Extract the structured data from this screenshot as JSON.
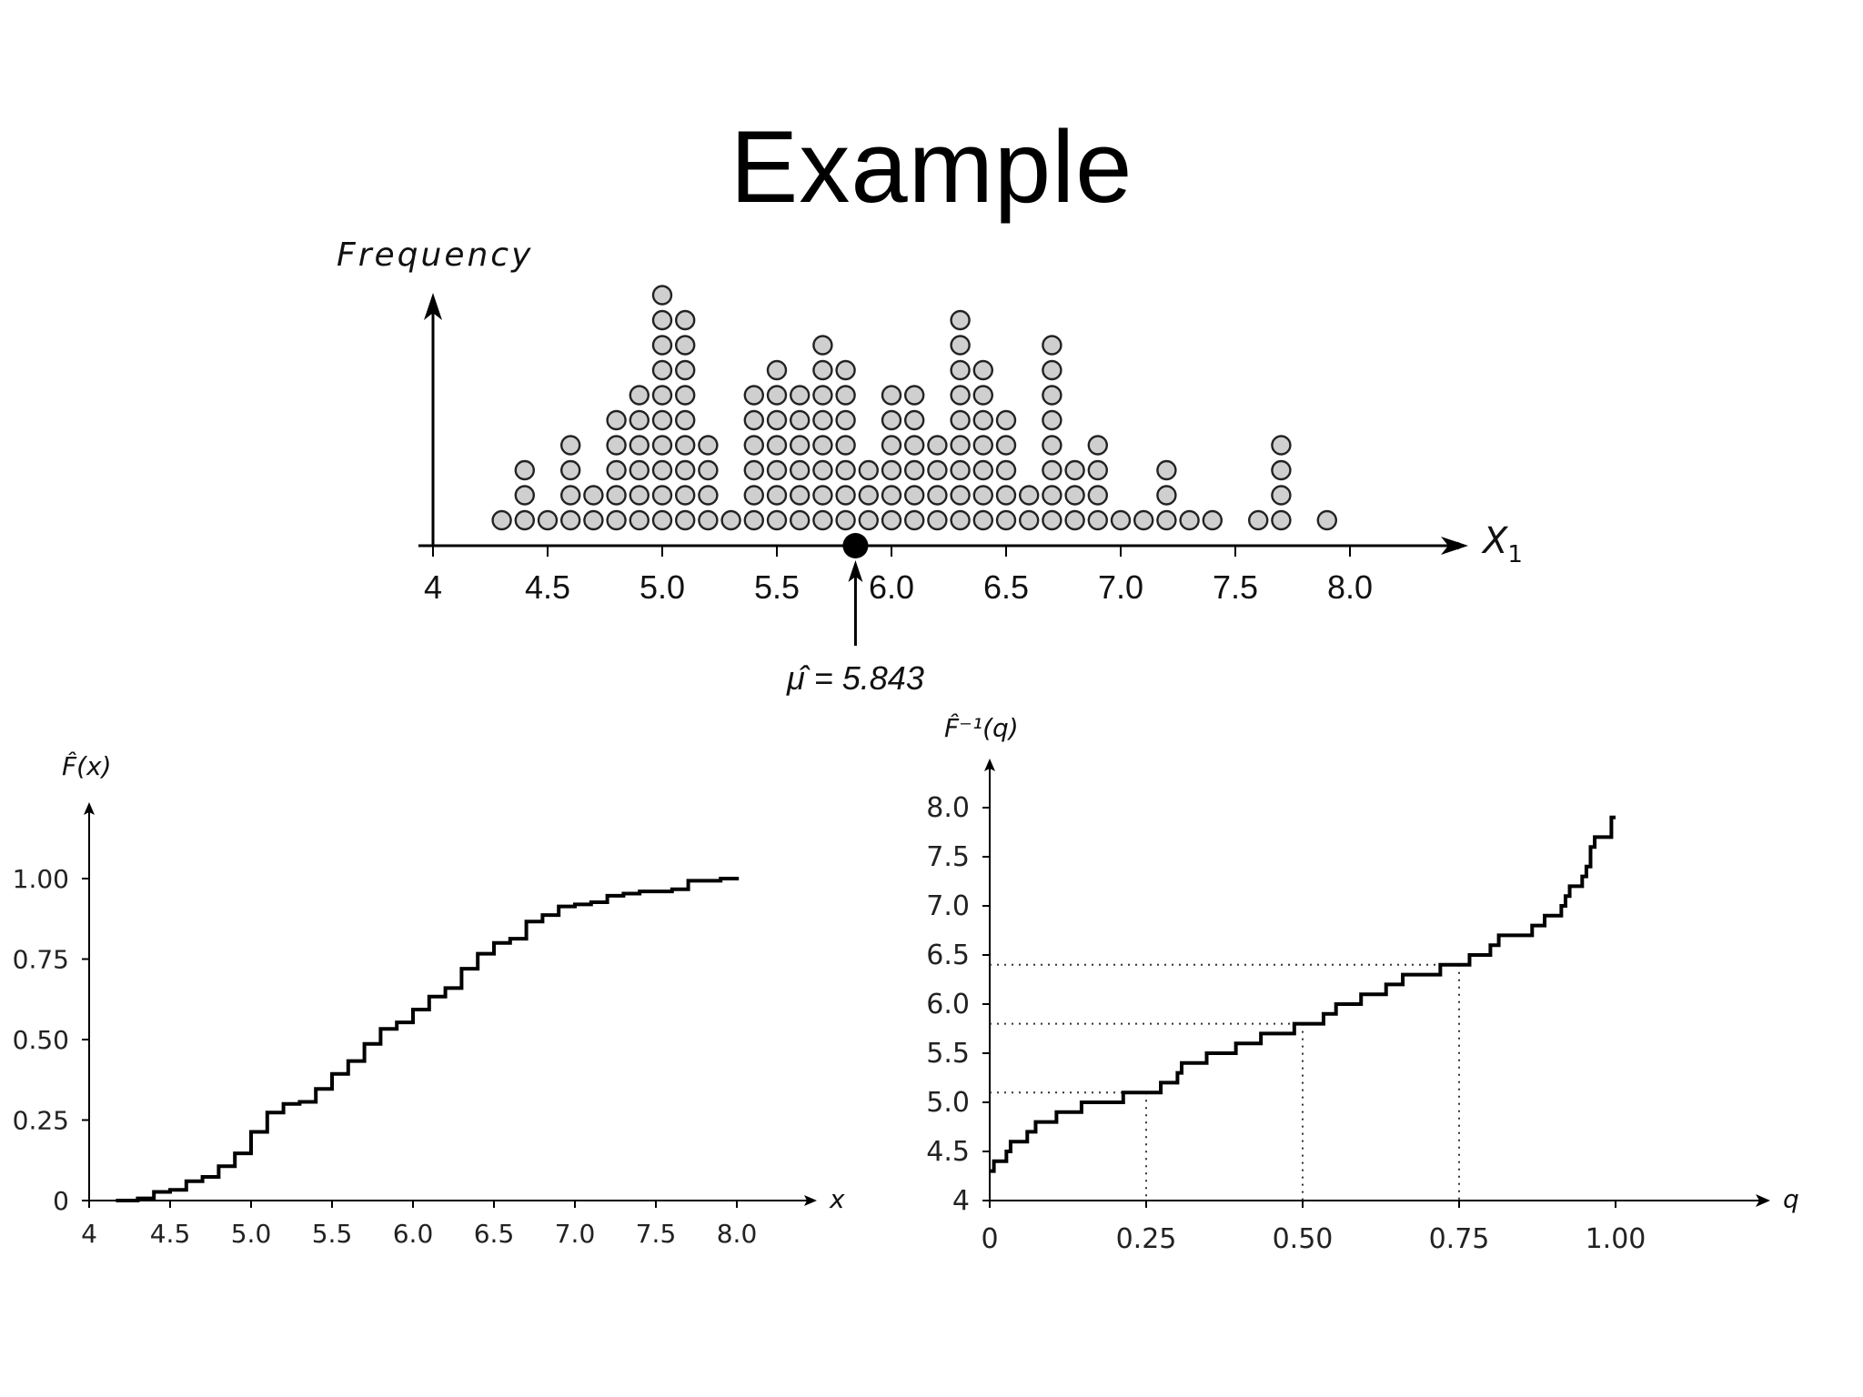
{
  "slide": {
    "title": "Example"
  },
  "chart_data": [
    {
      "type": "scatter",
      "subtype": "dot-plot",
      "ylabel": "Frequency",
      "xlabel_main": "X",
      "xlabel_sub": "1",
      "xlim": [
        4,
        8.3
      ],
      "xticks": [
        "4",
        "4.5",
        "5.0",
        "5.5",
        "6.0",
        "6.5",
        "7.0",
        "7.5",
        "8.0"
      ],
      "xtick_values": [
        4,
        4.5,
        5.0,
        5.5,
        6.0,
        6.5,
        7.0,
        7.5,
        8.0
      ],
      "x": [
        4.3,
        4.4,
        4.5,
        4.6,
        4.7,
        4.8,
        4.9,
        5.0,
        5.1,
        5.2,
        5.3,
        5.4,
        5.5,
        5.6,
        5.7,
        5.8,
        5.9,
        6.0,
        6.1,
        6.2,
        6.3,
        6.4,
        6.5,
        6.6,
        6.7,
        6.8,
        6.9,
        7.0,
        7.1,
        7.2,
        7.3,
        7.4,
        7.6,
        7.7,
        7.9
      ],
      "counts": [
        1,
        3,
        1,
        4,
        2,
        5,
        6,
        10,
        9,
        4,
        1,
        6,
        7,
        6,
        8,
        7,
        3,
        6,
        6,
        4,
        9,
        7,
        5,
        2,
        8,
        3,
        4,
        1,
        1,
        3,
        1,
        1,
        1,
        4,
        1
      ],
      "mean_marker": {
        "x": 5.843,
        "label": "μ̂ = 5.843"
      },
      "point_color": "#cfcfcf"
    },
    {
      "type": "line",
      "subtype": "step",
      "ylabel": "F̂(x)",
      "xlabel": "x",
      "xlim": [
        4,
        8.0
      ],
      "ylim": [
        0,
        1.0
      ],
      "xticks": [
        "4",
        "4.5",
        "5.0",
        "5.5",
        "6.0",
        "6.5",
        "7.0",
        "7.5",
        "8.0"
      ],
      "xtick_values": [
        4,
        4.5,
        5.0,
        5.5,
        6.0,
        6.5,
        7.0,
        7.5,
        8.0
      ],
      "yticks": [
        "0",
        "0.25",
        "0.50",
        "0.75",
        "1.00"
      ],
      "ytick_values": [
        0,
        0.25,
        0.5,
        0.75,
        1.0
      ]
    },
    {
      "type": "line",
      "subtype": "step",
      "ylabel": "F̂⁻¹(q)",
      "xlabel": "q",
      "xlim": [
        0,
        1.0
      ],
      "ylim": [
        4,
        8.0
      ],
      "xticks": [
        "0",
        "0.25",
        "0.50",
        "0.75",
        "1.00"
      ],
      "xtick_values": [
        0,
        0.25,
        0.5,
        0.75,
        1.0
      ],
      "yticks": [
        "4",
        "4.5",
        "5.0",
        "5.5",
        "6.0",
        "6.5",
        "7.0",
        "7.5",
        "8.0"
      ],
      "ytick_values": [
        4,
        4.5,
        5.0,
        5.5,
        6.0,
        6.5,
        7.0,
        7.5,
        8.0
      ],
      "guide_lines": [
        {
          "q": 0.25,
          "value": 5.1
        },
        {
          "q": 0.5,
          "value": 5.8
        },
        {
          "q": 0.75,
          "value": 6.4
        }
      ]
    }
  ]
}
